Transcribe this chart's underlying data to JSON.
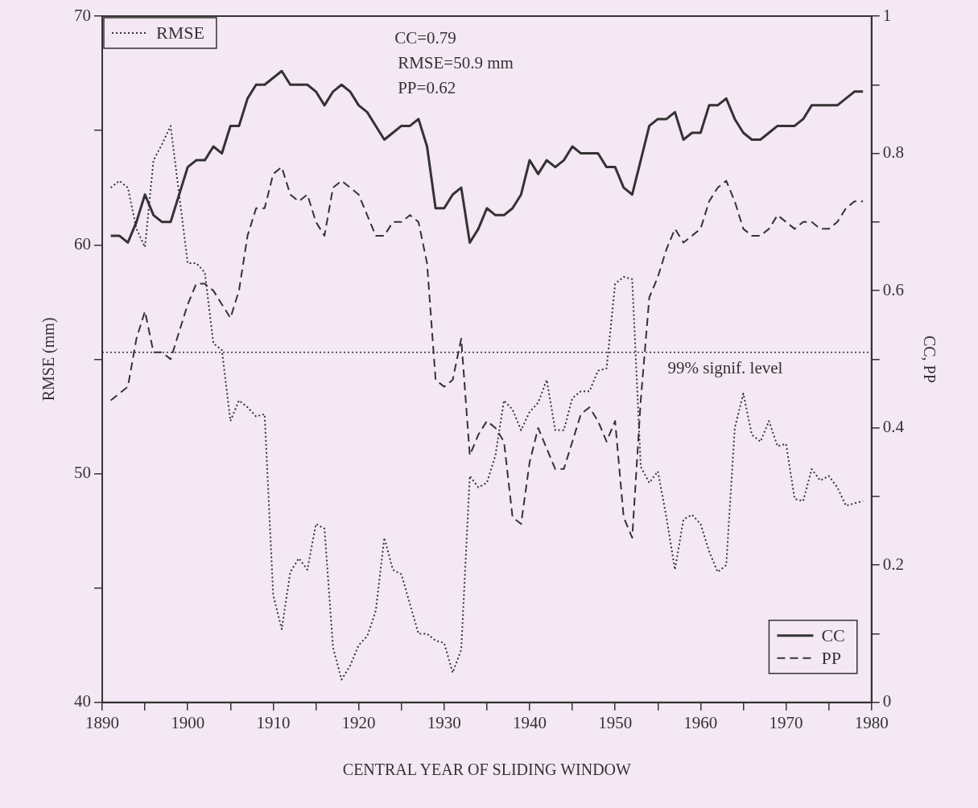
{
  "chart_data": {
    "type": "line",
    "xlabel": "CENTRAL YEAR OF SLIDING WINDOW",
    "ylabel": "RMSE (mm)",
    "y2label": "CC, PP",
    "x": [
      1891,
      1892,
      1893,
      1894,
      1895,
      1896,
      1897,
      1898,
      1899,
      1900,
      1901,
      1902,
      1903,
      1904,
      1905,
      1906,
      1907,
      1908,
      1909,
      1910,
      1911,
      1912,
      1913,
      1914,
      1915,
      1916,
      1917,
      1918,
      1919,
      1920,
      1921,
      1922,
      1923,
      1924,
      1925,
      1926,
      1927,
      1928,
      1929,
      1930,
      1931,
      1932,
      1933,
      1934,
      1935,
      1936,
      1937,
      1938,
      1939,
      1940,
      1941,
      1942,
      1943,
      1944,
      1945,
      1946,
      1947,
      1948,
      1949,
      1950,
      1951,
      1952,
      1953,
      1954,
      1955,
      1956,
      1957,
      1958,
      1959,
      1960,
      1961,
      1962,
      1963,
      1964,
      1965,
      1966,
      1967,
      1968,
      1969,
      1970,
      1971,
      1972,
      1973,
      1974,
      1975,
      1976,
      1977,
      1978,
      1979
    ],
    "series": [
      {
        "name": "CC",
        "color": "#333333",
        "line_style": "solid",
        "axis": "y2",
        "values": [
          0.68,
          0.68,
          0.67,
          0.7,
          0.74,
          0.71,
          0.7,
          0.7,
          0.74,
          0.78,
          0.79,
          0.79,
          0.81,
          0.8,
          0.84,
          0.84,
          0.88,
          0.9,
          0.9,
          0.91,
          0.92,
          0.9,
          0.9,
          0.9,
          0.89,
          0.87,
          0.89,
          0.9,
          0.89,
          0.87,
          0.86,
          0.84,
          0.82,
          0.83,
          0.84,
          0.84,
          0.85,
          0.81,
          0.72,
          0.72,
          0.74,
          0.75,
          0.67,
          0.69,
          0.72,
          0.71,
          0.71,
          0.72,
          0.74,
          0.79,
          0.77,
          0.79,
          0.78,
          0.79,
          0.81,
          0.8,
          0.8,
          0.8,
          0.78,
          0.78,
          0.75,
          0.74,
          0.79,
          0.84,
          0.85,
          0.85,
          0.86,
          0.82,
          0.83,
          0.83,
          0.87,
          0.87,
          0.88,
          0.85,
          0.83,
          0.82,
          0.82,
          0.83,
          0.84,
          0.84,
          0.84,
          0.85,
          0.87,
          0.87,
          0.87,
          0.87,
          0.88,
          0.89,
          0.89
        ]
      },
      {
        "name": "PP",
        "color": "#333333",
        "line_style": "dashed",
        "axis": "y2",
        "values": [
          0.44,
          0.45,
          0.46,
          0.53,
          0.57,
          0.51,
          0.51,
          0.5,
          0.54,
          0.58,
          0.61,
          0.61,
          0.6,
          0.58,
          0.56,
          0.6,
          0.68,
          0.72,
          0.72,
          0.77,
          0.78,
          0.74,
          0.73,
          0.74,
          0.7,
          0.68,
          0.75,
          0.76,
          0.75,
          0.74,
          0.71,
          0.68,
          0.68,
          0.7,
          0.7,
          0.71,
          0.7,
          0.64,
          0.47,
          0.46,
          0.47,
          0.53,
          0.36,
          0.39,
          0.41,
          0.4,
          0.38,
          0.27,
          0.26,
          0.35,
          0.4,
          0.37,
          0.34,
          0.34,
          0.38,
          0.42,
          0.43,
          0.41,
          0.38,
          0.41,
          0.27,
          0.24,
          0.44,
          0.59,
          0.62,
          0.66,
          0.69,
          0.67,
          0.68,
          0.69,
          0.73,
          0.75,
          0.76,
          0.73,
          0.69,
          0.68,
          0.68,
          0.69,
          0.71,
          0.7,
          0.69,
          0.7,
          0.7,
          0.69,
          0.69,
          0.7,
          0.72,
          0.73,
          0.73
        ]
      },
      {
        "name": "RMSE",
        "color": "#333333",
        "line_style": "dotted",
        "values": [
          62.5,
          62.8,
          62.5,
          60.7,
          59.9,
          63.7,
          64.4,
          65.2,
          62.2,
          59.2,
          59.2,
          58.8,
          55.7,
          55.4,
          52.3,
          53.2,
          52.9,
          52.5,
          52.6,
          44.7,
          43.2,
          45.7,
          46.3,
          45.8,
          47.8,
          47.6,
          42.4,
          41.0,
          41.6,
          42.5,
          42.9,
          44.0,
          47.2,
          45.8,
          45.6,
          44.3,
          43.0,
          43.0,
          42.7,
          42.6,
          41.3,
          42.3,
          49.9,
          49.4,
          49.6,
          50.8,
          53.2,
          52.8,
          51.9,
          52.7,
          53.1,
          54.1,
          51.9,
          51.9,
          53.3,
          53.6,
          53.6,
          54.5,
          54.6,
          58.3,
          58.6,
          58.5,
          50.3,
          49.6,
          50.1,
          48.1,
          45.8,
          48.0,
          48.2,
          47.8,
          46.6,
          45.7,
          46.0,
          52.0,
          53.5,
          51.7,
          51.4,
          52.3,
          51.2,
          51.3,
          48.9,
          48.8,
          50.2,
          49.7,
          49.9,
          49.4,
          48.6,
          48.7,
          48.8
        ]
      }
    ],
    "xlim": [
      1890,
      1980
    ],
    "xticks": [
      1890,
      {
        "value": 1895,
        "label": null
      },
      1900,
      {
        "value": 1905,
        "label": null
      },
      1910,
      {
        "value": 1915,
        "label": null
      },
      1920,
      {
        "value": 1925,
        "label": null
      },
      1930,
      {
        "value": 1935,
        "label": null
      },
      1940,
      {
        "value": 1945,
        "label": null
      },
      1950,
      {
        "value": 1955,
        "label": null
      },
      1960,
      {
        "value": 1965,
        "label": null
      },
      1970,
      {
        "value": 1975,
        "label": null
      },
      1980
    ],
    "ylim": [
      40,
      70
    ],
    "yticks": [
      40,
      {
        "value": 45,
        "label": null
      },
      50,
      {
        "value": 55,
        "label": null
      },
      60,
      {
        "value": 65,
        "label": null
      },
      70
    ],
    "y2lim": [
      0,
      1
    ],
    "y2ticks": [
      0,
      {
        "value": 0.1,
        "label": null
      },
      0.2,
      {
        "value": 0.3,
        "label": null
      },
      0.4,
      {
        "value": 0.5,
        "label": null
      },
      0.6,
      {
        "value": 0.7,
        "label": null
      },
      0.8,
      {
        "value": 0.9,
        "label": null
      },
      1
    ],
    "ref_lines": [
      {
        "axis": "y2",
        "value": 0.51,
        "label": "99% signif. level",
        "line_style": "dotted",
        "color": "#333333"
      }
    ],
    "annotations": [
      "CC=0.79",
      "RMSE=50.9 mm",
      "PP=0.62"
    ],
    "legend": "top left",
    "marker": "none",
    "grid": false
  }
}
